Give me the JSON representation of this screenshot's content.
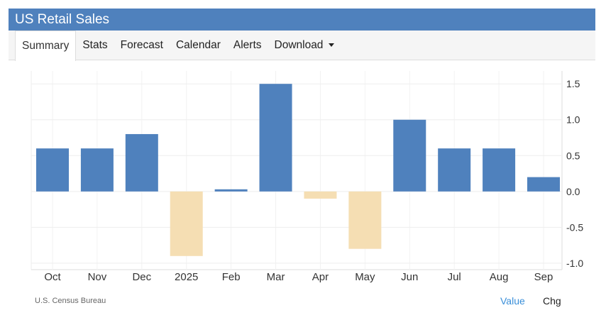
{
  "header": {
    "title": "US Retail Sales"
  },
  "tabs": [
    {
      "label": "Summary",
      "active": true
    },
    {
      "label": "Stats"
    },
    {
      "label": "Forecast"
    },
    {
      "label": "Calendar"
    },
    {
      "label": "Alerts"
    },
    {
      "label": "Download",
      "dropdown": true
    }
  ],
  "footer": {
    "source": "U.S. Census Bureau",
    "value_label": "Value",
    "chg_label": "Chg"
  },
  "colors": {
    "header": "#4f81bd",
    "positive": "#4f81bd",
    "negative": "#f5deb3",
    "link": "#3a8fd9"
  },
  "chart_data": {
    "type": "bar",
    "categories": [
      "Oct",
      "Nov",
      "Dec",
      "2025",
      "Feb",
      "Mar",
      "Apr",
      "May",
      "Jun",
      "Jul",
      "Aug",
      "Sep"
    ],
    "values": [
      0.6,
      0.6,
      0.8,
      -0.9,
      0.03,
      1.5,
      -0.1,
      -0.8,
      1.0,
      0.6,
      0.6,
      0.2
    ],
    "yticks": [
      "1.5",
      "1.0",
      "0.5",
      "0.0",
      "-0.5",
      "-1.0"
    ],
    "ylim": [
      -1.09,
      1.68
    ],
    "yaxis_position": "right",
    "grid": true
  }
}
